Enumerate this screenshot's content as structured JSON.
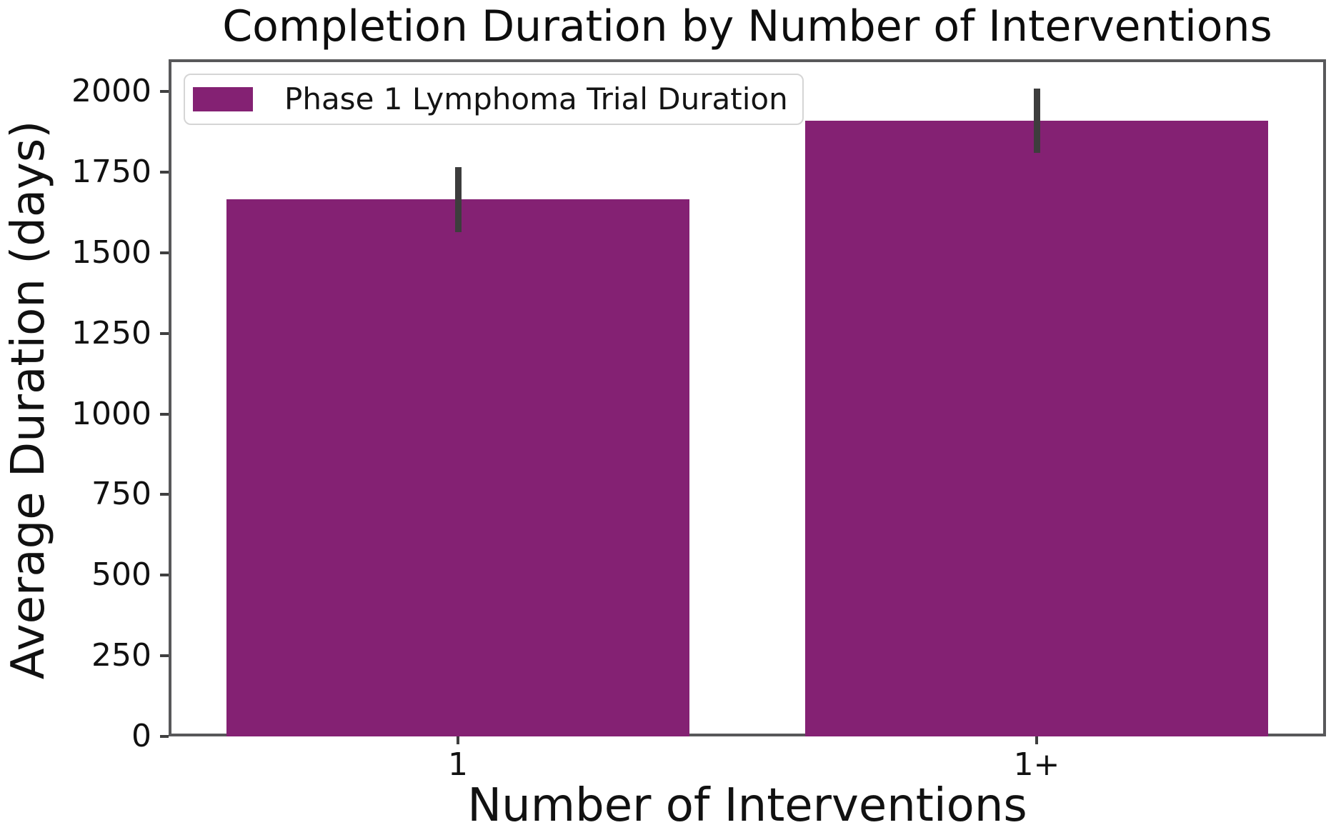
{
  "chart_data": {
    "type": "bar",
    "title": "Completion Duration by Number of Interventions",
    "xlabel": "Number of Interventions",
    "ylabel": "Average Duration (days)",
    "categories": [
      "1",
      "1+"
    ],
    "series": [
      {
        "name": "Phase 1 Lymphoma Trial Duration",
        "values": [
          1665,
          1910
        ],
        "error_low": [
          1565,
          1810
        ],
        "error_high": [
          1765,
          2010
        ]
      }
    ],
    "ylim": [
      0,
      2100
    ],
    "yticks": [
      0,
      250,
      500,
      750,
      1000,
      1250,
      1500,
      1750,
      2000
    ],
    "grid": false,
    "legend": {
      "position": "upper left",
      "entries": [
        "Phase 1 Lymphoma Trial Duration"
      ]
    },
    "colors": {
      "bar": "#842173",
      "error_bar": "#3d3d3d",
      "spine": "#58585a",
      "tick": "#3f3f3f",
      "text": "#111111",
      "legend_border": "#d5d5d5",
      "background": "#ffffff"
    }
  }
}
